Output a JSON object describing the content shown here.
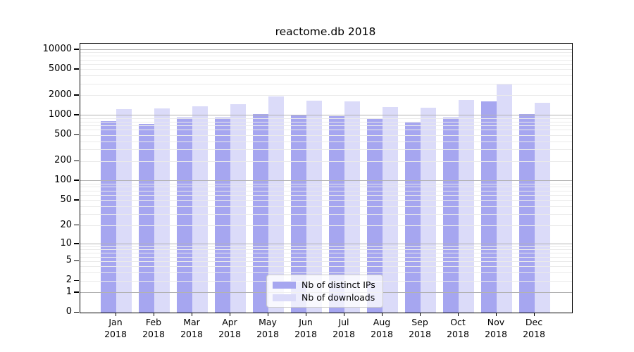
{
  "chart_data": {
    "type": "bar",
    "title": "reactome.db 2018",
    "categories": [
      "Jan",
      "Feb",
      "Mar",
      "Apr",
      "May",
      "Jun",
      "Jul",
      "Aug",
      "Sep",
      "Oct",
      "Nov",
      "Dec"
    ],
    "category_year": "2018",
    "series": [
      {
        "name": "Nb of distinct IPs",
        "color": "#a6a6f0",
        "values": [
          815,
          750,
          935,
          935,
          1060,
          1000,
          965,
          905,
          800,
          935,
          1620,
          1045
        ]
      },
      {
        "name": "Nb of downloads",
        "color": "#dbdbf9",
        "values": [
          1260,
          1280,
          1390,
          1470,
          1960,
          1680,
          1625,
          1355,
          1300,
          1735,
          3020,
          1540
        ]
      }
    ],
    "yscale": "log1p",
    "y_ticks": [
      0,
      1,
      2,
      5,
      10,
      20,
      50,
      100,
      200,
      500,
      1000,
      2000,
      5000,
      10000
    ],
    "y_major_gridlines": [
      1,
      10,
      100,
      1000,
      10000
    ],
    "ylim": [
      0,
      12400
    ],
    "grid": "horizontal",
    "legend_position": "lower center",
    "colors": {
      "major_grid": "#b2b2b2",
      "minor_grid": "#eaeaea",
      "axis": "#000000",
      "background": "#ffffff"
    }
  }
}
